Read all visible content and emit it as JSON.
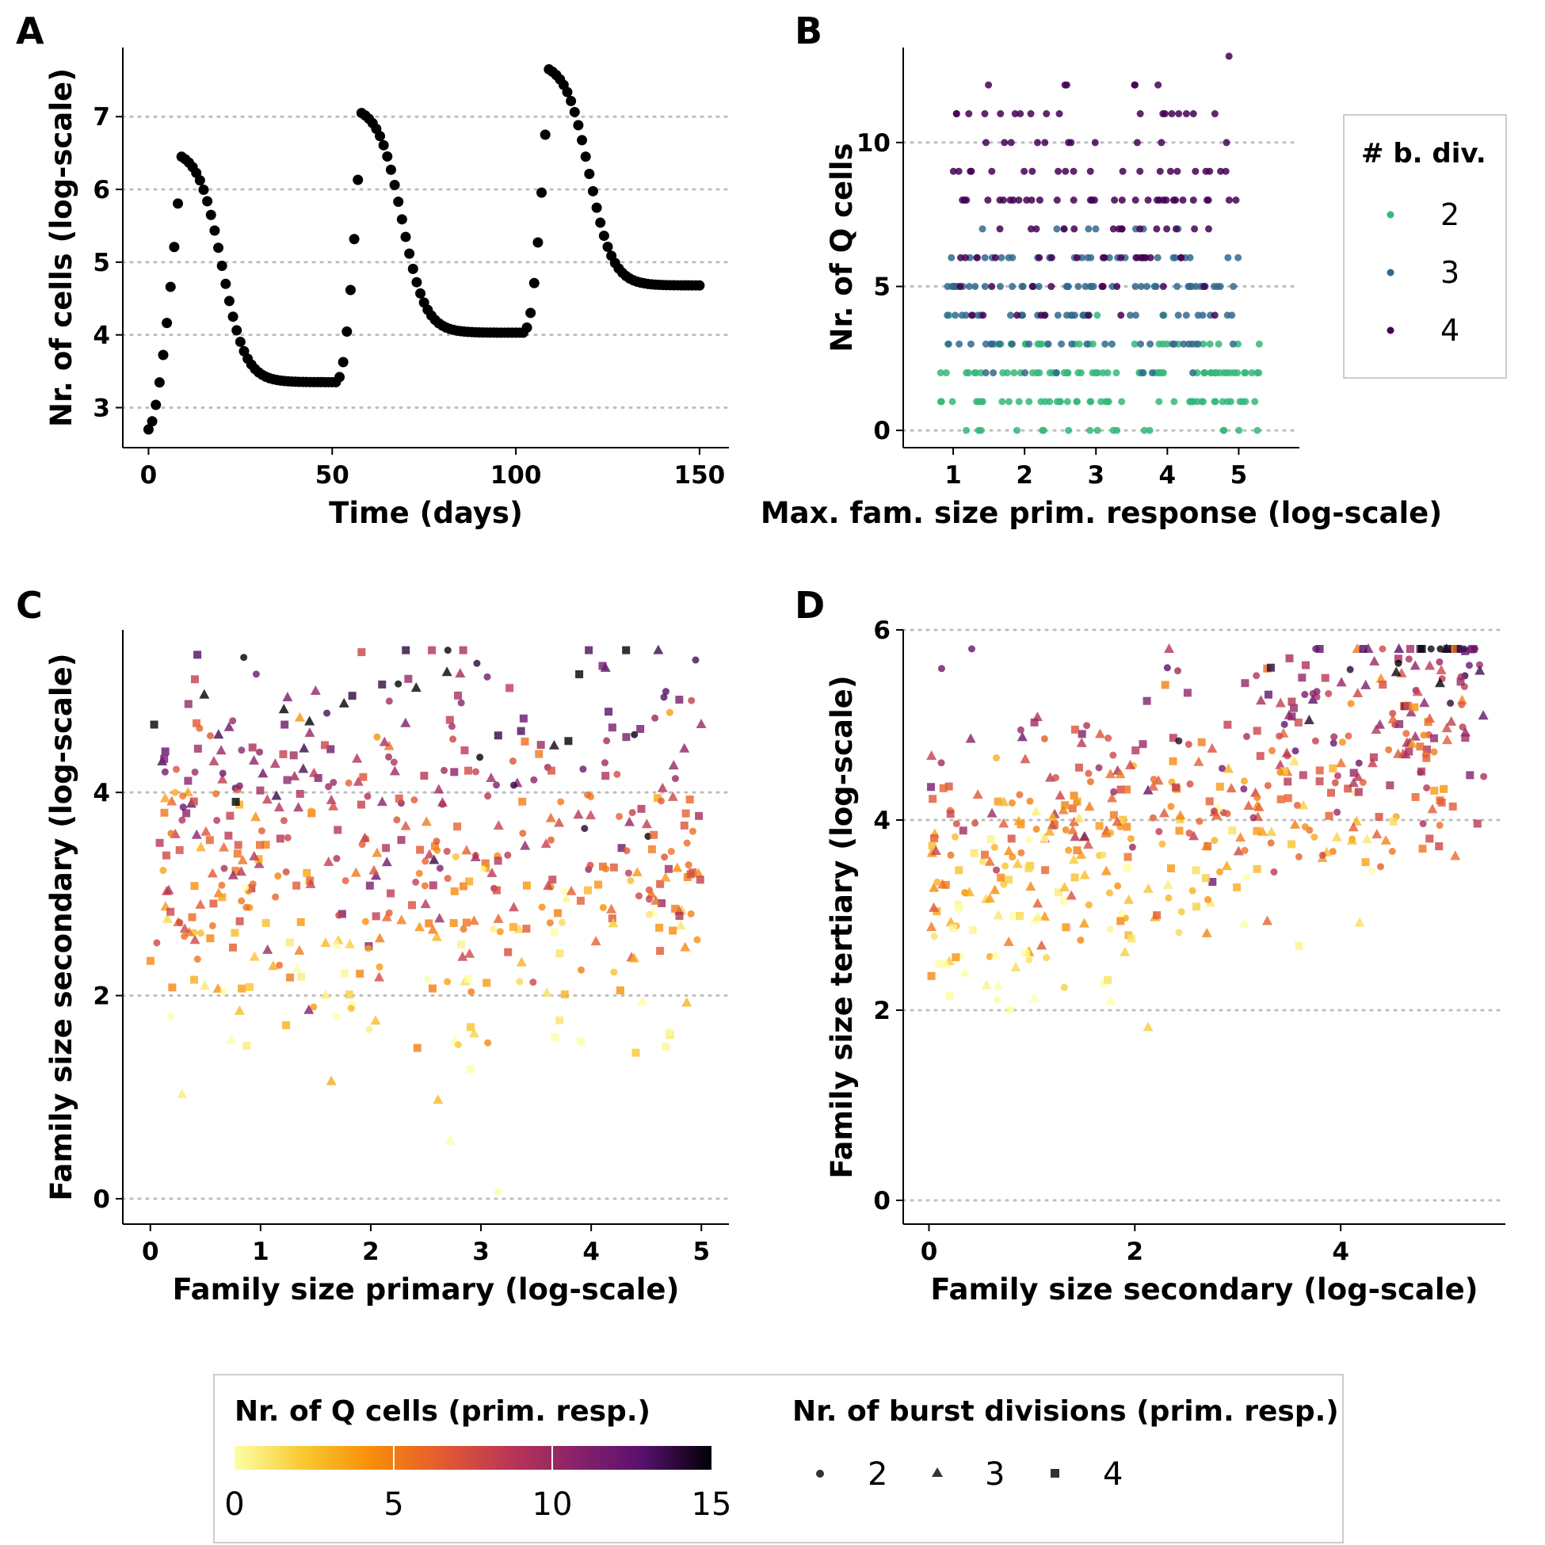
{
  "panels": {
    "a": "A",
    "b": "B",
    "c": "C",
    "d": "D"
  },
  "colors": {
    "axis": "#000000",
    "grid": "#bdbdbd",
    "points_a": "#000000",
    "bdiv2": "#35b779",
    "bdiv3": "#31688e",
    "bdiv4": "#440154"
  },
  "chart_data": [
    {
      "id": "A",
      "type": "scatter",
      "xlabel": "Time (days)",
      "ylabel": "Nr. of cells (log-scale)",
      "xlim": [
        -7,
        158
      ],
      "ylim": [
        2.45,
        7.95
      ],
      "xticks": [
        0,
        50,
        100,
        150
      ],
      "yticks": [
        3,
        4,
        5,
        6,
        7
      ],
      "grid": "horizontal dotted",
      "kinetics": [
        {
          "start": 0,
          "peak_day": 9,
          "peak": 6.45,
          "initial": 2.7,
          "plateau": 3.35,
          "halfpoint_days": 11
        },
        {
          "start": 52,
          "peak_day": 58,
          "peak": 7.05,
          "initial": 3.42,
          "plateau": 4.03,
          "halfpoint_days": 11
        },
        {
          "start": 103,
          "peak_day": 109,
          "peak": 7.65,
          "initial": 4.1,
          "plateau": 4.68,
          "halfpoint_days": 11
        }
      ],
      "time_range": [
        0,
        150
      ]
    },
    {
      "id": "B",
      "type": "scatter",
      "xlabel": "Max. fam. size prim. response (log-scale)",
      "ylabel": "Nr. of Q cells",
      "xlim": [
        0.3,
        5.85
      ],
      "ylim": [
        -0.6,
        13.3
      ],
      "xticks": [
        1,
        2,
        3,
        4,
        5
      ],
      "yticks": [
        0,
        5,
        10
      ],
      "grid": "horizontal dotted",
      "legend": {
        "title": "# b. div.",
        "placement": "right",
        "entries": [
          {
            "label": "2",
            "color": "#35b779"
          },
          {
            "label": "3",
            "color": "#31688e"
          },
          {
            "label": "4",
            "color": "#440154"
          }
        ]
      },
      "series": [
        {
          "name": "2",
          "x_range": [
            0.8,
            5.3
          ],
          "y_levels": [
            0,
            1,
            2,
            3,
            4
          ],
          "y_weights": [
            3,
            5,
            6,
            4,
            1
          ],
          "count": 150
        },
        {
          "name": "3",
          "x_range": [
            0.9,
            5.0
          ],
          "y_levels": [
            2,
            3,
            4,
            5,
            6,
            7
          ],
          "y_weights": [
            1,
            3,
            4,
            5,
            3,
            1
          ],
          "count": 140
        },
        {
          "name": "4",
          "x_range": [
            1.0,
            5.0
          ],
          "y_levels": [
            4,
            5,
            6,
            7,
            8,
            9,
            10,
            11,
            12,
            13
          ],
          "y_weights": [
            1,
            2,
            4,
            5,
            5,
            5,
            3,
            2,
            1,
            0.5
          ],
          "count": 140
        }
      ]
    },
    {
      "id": "C",
      "type": "scatter",
      "xlabel": "Family size primary (log-scale)",
      "ylabel": "Family size secondary (log-scale)",
      "xlim": [
        -0.25,
        5.25
      ],
      "ylim": [
        -0.25,
        5.6
      ],
      "xticks": [
        0,
        1,
        2,
        3,
        4,
        5
      ],
      "yticks": [
        0,
        2,
        4
      ],
      "grid": "horizontal dotted",
      "point_cloud": {
        "count": 500,
        "x_range": [
          0,
          5
        ],
        "y_mean": 3.4,
        "y_sd": 1.0,
        "y_range": [
          0,
          5.4
        ]
      }
    },
    {
      "id": "D",
      "type": "scatter",
      "xlabel": "Family size secondary (log-scale)",
      "ylabel": "Family size tertiary (log-scale)",
      "xlim": [
        -0.25,
        5.6
      ],
      "ylim": [
        -0.25,
        6.0
      ],
      "xticks": [
        0,
        2,
        4
      ],
      "yticks": [
        0,
        2,
        4,
        6
      ],
      "grid": "horizontal dotted",
      "point_cloud": {
        "count": 500,
        "x_range": [
          0,
          5.4
        ],
        "y_mean": 4.5,
        "y_sd": 0.7,
        "y_range": [
          0,
          5.8
        ]
      }
    }
  ],
  "legend_bottom": {
    "color_title": "Nr. of Q cells (prim. resp.)",
    "color_ticks": [
      "0",
      "5",
      "10",
      "15"
    ],
    "color_domain": [
      0,
      15
    ],
    "gradient": [
      "#fcffa4",
      "#f9c932",
      "#f98e09",
      "#e55c30",
      "#bc3754",
      "#8a226a",
      "#57106e",
      "#000004"
    ],
    "shape_title": "Nr. of burst divisions (prim. resp.)",
    "shapes": [
      {
        "label": "2",
        "shape": "circle"
      },
      {
        "label": "3",
        "shape": "triangle"
      },
      {
        "label": "4",
        "shape": "square"
      }
    ]
  }
}
